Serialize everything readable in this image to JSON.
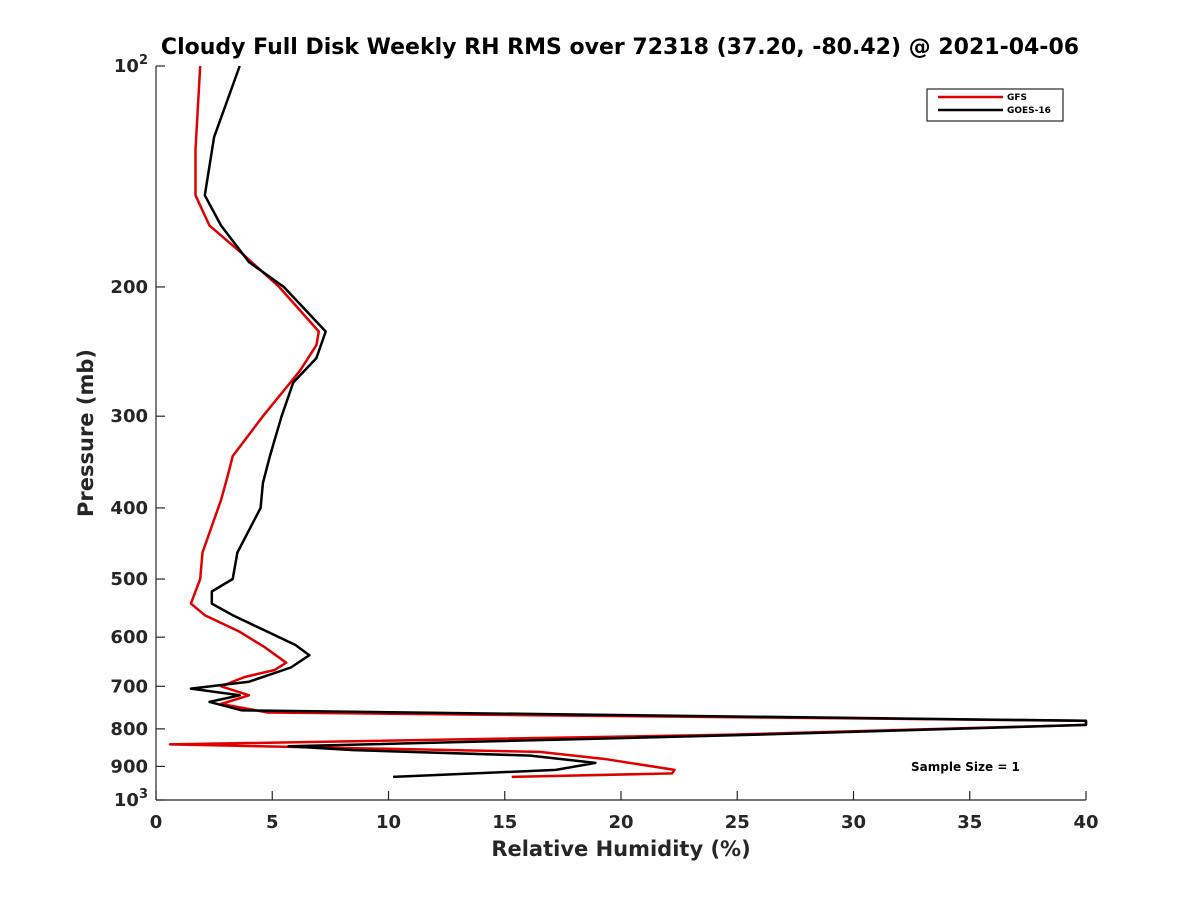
{
  "chart_data": {
    "type": "line",
    "title": "Cloudy Full Disk Weekly RH RMS over 72318 (37.20, -80.42) @ 2021-04-06",
    "xlabel": "Relative Humidity (%)",
    "ylabel": "Pressure (mb)",
    "xlim": [
      0,
      40
    ],
    "ylim": [
      100,
      1000
    ],
    "yscale": "log",
    "y_reversed": true,
    "grid": false,
    "legend_position": "top-right",
    "x_ticks": [
      "0",
      "5",
      "10",
      "15",
      "20",
      "25",
      "30",
      "35",
      "40"
    ],
    "x_tick_values": [
      0,
      5,
      10,
      15,
      20,
      25,
      30,
      35,
      40
    ],
    "y_ticks": [
      {
        "value": 100,
        "base": "10",
        "exp": "2",
        "label": "10^2"
      },
      {
        "value": 200,
        "label": "200"
      },
      {
        "value": 300,
        "label": "300"
      },
      {
        "value": 400,
        "label": "400"
      },
      {
        "value": 500,
        "label": "500"
      },
      {
        "value": 600,
        "label": "600"
      },
      {
        "value": 700,
        "label": "700"
      },
      {
        "value": 800,
        "label": "800"
      },
      {
        "value": 900,
        "label": "900"
      },
      {
        "value": 1000,
        "base": "10",
        "exp": "3",
        "label": "10^3"
      }
    ],
    "series": [
      {
        "name": "GFS",
        "color": "#e00000",
        "x": [
          1.9,
          1.7,
          1.7,
          2.3,
          3.7,
          5.3,
          7.0,
          6.9,
          6.2,
          4.6,
          3.3,
          3.1,
          2.8,
          2.0,
          1.9,
          1.5,
          2.1,
          3.6,
          4.7,
          5.6,
          5.1,
          3.8,
          2.8,
          4.0,
          2.8,
          4.8,
          40.0,
          40.0,
          24.5,
          0.6,
          16.5,
          19.4,
          22.3,
          22.2,
          15.3
        ],
        "p": [
          100,
          130,
          150,
          165,
          180,
          200,
          230,
          240,
          260,
          300,
          340,
          360,
          390,
          460,
          500,
          540,
          560,
          590,
          620,
          650,
          665,
          680,
          700,
          720,
          740,
          760,
          780,
          790,
          815,
          840,
          860,
          880,
          910,
          920,
          930
        ]
      },
      {
        "name": "GOES-16",
        "color": "#000000",
        "x": [
          3.6,
          2.5,
          2.1,
          2.8,
          4.0,
          5.5,
          7.3,
          6.9,
          5.9,
          5.4,
          4.9,
          4.6,
          4.5,
          3.5,
          3.3,
          2.4,
          2.4,
          3.3,
          4.8,
          6.0,
          6.6,
          5.8,
          4.0,
          1.5,
          3.6,
          2.3,
          3.7,
          40.0,
          40.0,
          25.7,
          5.7,
          8.5,
          16.1,
          18.9,
          17.2,
          10.2
        ],
        "p": [
          100,
          125,
          150,
          165,
          185,
          200,
          230,
          250,
          270,
          300,
          340,
          370,
          400,
          460,
          500,
          520,
          540,
          560,
          590,
          615,
          635,
          660,
          690,
          705,
          720,
          735,
          755,
          780,
          790,
          815,
          845,
          855,
          870,
          890,
          910,
          930
        ]
      }
    ],
    "annotation": "Sample Size = 1"
  }
}
